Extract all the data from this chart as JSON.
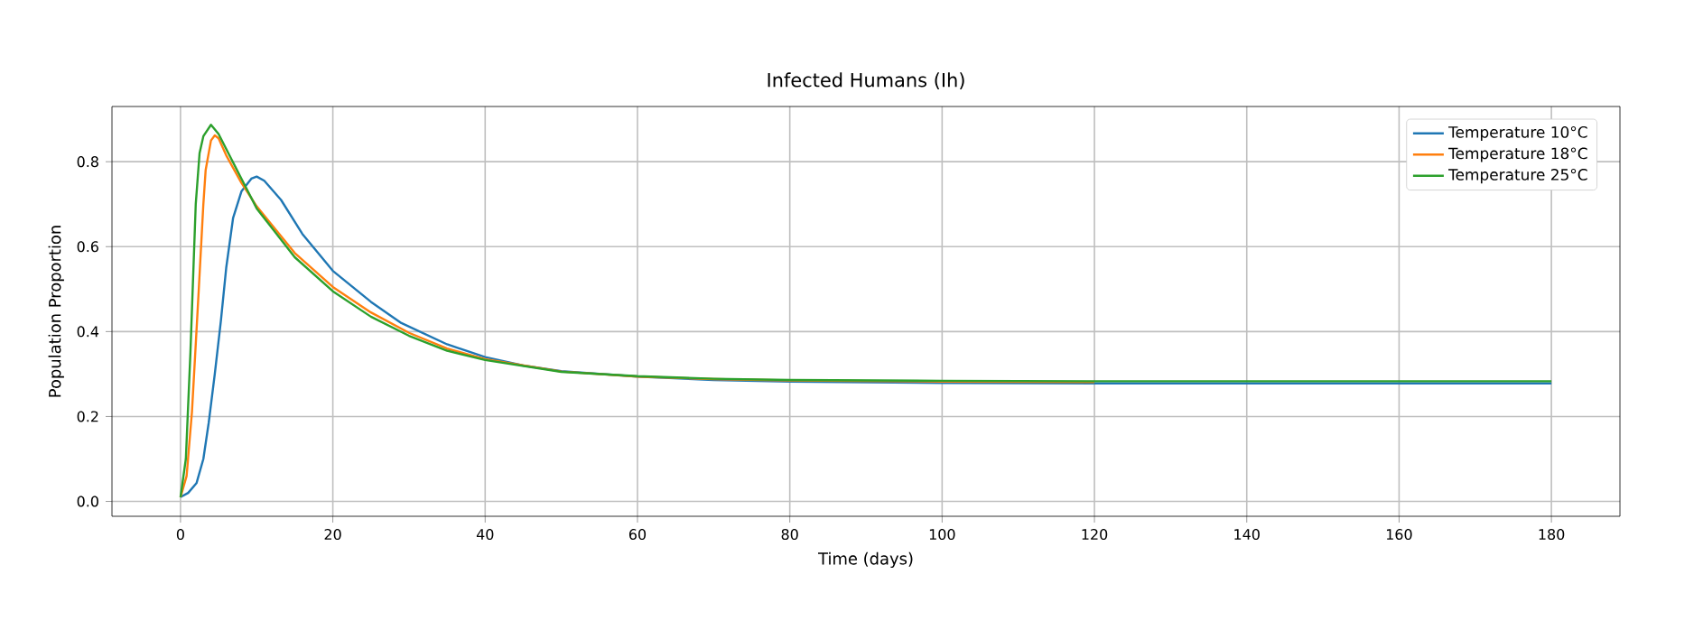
{
  "chart_data": {
    "type": "line",
    "title": "Infected Humans (Ih)",
    "xlabel": "Time (days)",
    "ylabel": "Population Proportion",
    "xlim": [
      -9,
      189
    ],
    "ylim": [
      -0.035,
      0.93
    ],
    "xticks": [
      0,
      20,
      40,
      60,
      80,
      100,
      120,
      140,
      160,
      180
    ],
    "yticks": [
      {
        "value": 0,
        "label": "0.0"
      },
      0.2,
      0.4,
      0.6,
      0.8
    ],
    "grid": true,
    "legend": "top right",
    "marker": "none",
    "line_style": "solid",
    "series": [
      {
        "name": "Temperature 10°C",
        "color": "#1f77b4",
        "x": [
          0,
          1,
          2.1,
          3,
          3.7,
          4.5,
          5.3,
          6,
          6.9,
          8,
          9.3,
          10,
          11,
          13.2,
          16,
          20,
          25,
          29,
          35,
          40,
          45,
          50,
          60,
          70,
          80,
          100,
          120,
          140,
          160,
          180
        ],
        "values": [
          0.01,
          0.02,
          0.043,
          0.1,
          0.185,
          0.3,
          0.425,
          0.55,
          0.667,
          0.73,
          0.76,
          0.765,
          0.755,
          0.71,
          0.63,
          0.543,
          0.47,
          0.42,
          0.37,
          0.34,
          0.32,
          0.307,
          0.294,
          0.286,
          0.282,
          0.279,
          0.278,
          0.278,
          0.278,
          0.278
        ]
      },
      {
        "name": "Temperature 18°C",
        "color": "#ff7f0e",
        "x": [
          0,
          0.8,
          1.5,
          2,
          2.4,
          3,
          3.3,
          4,
          4.5,
          5,
          6,
          8,
          10,
          15,
          20,
          25,
          30,
          35,
          40,
          50,
          60,
          70,
          80,
          100,
          120
        ],
        "values": [
          0.01,
          0.06,
          0.21,
          0.37,
          0.5,
          0.7,
          0.78,
          0.85,
          0.862,
          0.855,
          0.815,
          0.75,
          0.695,
          0.585,
          0.505,
          0.445,
          0.397,
          0.36,
          0.335,
          0.306,
          0.294,
          0.288,
          0.285,
          0.282,
          0.281
        ]
      },
      {
        "name": "Temperature 25°C",
        "color": "#2ca02c",
        "x": [
          0,
          0.7,
          1.3,
          2,
          2.5,
          3,
          4,
          5,
          6,
          8,
          10,
          15,
          20,
          25,
          30,
          35,
          40,
          50,
          60,
          70,
          80,
          100,
          120,
          140,
          160,
          180
        ],
        "values": [
          0.01,
          0.1,
          0.35,
          0.7,
          0.82,
          0.86,
          0.887,
          0.865,
          0.83,
          0.76,
          0.69,
          0.575,
          0.495,
          0.435,
          0.39,
          0.355,
          0.333,
          0.305,
          0.295,
          0.289,
          0.286,
          0.284,
          0.283,
          0.283,
          0.283,
          0.283
        ]
      }
    ]
  }
}
